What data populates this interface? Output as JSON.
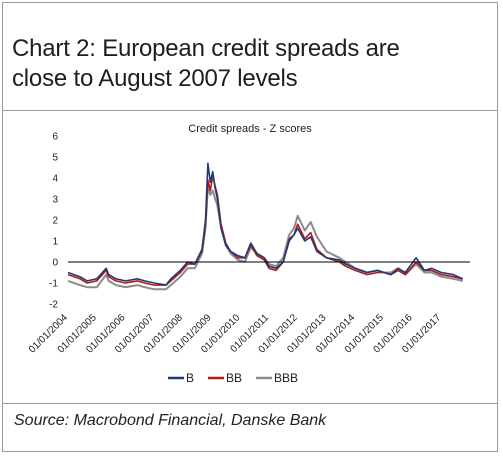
{
  "header": {
    "title_line1": "Chart 2: European credit spreads are",
    "title_line2": "close to August 2007 levels"
  },
  "footer": {
    "source": "Source: Macrobond Financial, Danske Bank"
  },
  "colors": {
    "B": "#1f3b73",
    "BB": "#b5161c",
    "BBB": "#8c8c8c",
    "zero_line": "#000000",
    "axis_text": "#222222"
  },
  "chart_data": {
    "type": "line",
    "title": "Credit spreads - Z scores",
    "xlabel": "",
    "ylabel": "",
    "ylim": [
      -2,
      6
    ],
    "yticks": [
      -2,
      -1,
      0,
      1,
      2,
      3,
      4,
      5,
      6
    ],
    "xlim": [
      "2004-01-01",
      "2018-01-01"
    ],
    "xticks": [
      "01/01/2004",
      "01/01/2005",
      "01/01/2006",
      "01/01/2007",
      "01/01/2008",
      "01/01/2009",
      "01/01/2010",
      "01/01/2011",
      "01/01/2012",
      "01/01/2013",
      "01/01/2014",
      "01/01/2015",
      "01/01/2016",
      "01/01/2017"
    ],
    "legend": "bottom-center",
    "grid": false,
    "series": [
      {
        "name": "B",
        "x": [
          "2004-01-01",
          "2004-06-01",
          "2004-09-01",
          "2005-01-01",
          "2005-05-01",
          "2005-06-01",
          "2005-09-01",
          "2006-01-01",
          "2006-06-01",
          "2006-09-01",
          "2007-01-01",
          "2007-06-01",
          "2007-08-01",
          "2007-12-01",
          "2008-03-01",
          "2008-06-01",
          "2008-09-01",
          "2008-10-15",
          "2008-11-15",
          "2008-12-15",
          "2009-01-15",
          "2009-02-15",
          "2009-03-15",
          "2009-05-01",
          "2009-07-01",
          "2009-09-01",
          "2009-12-01",
          "2010-03-01",
          "2010-05-15",
          "2010-08-01",
          "2010-11-01",
          "2011-01-01",
          "2011-04-01",
          "2011-07-01",
          "2011-09-15",
          "2011-11-15",
          "2012-01-01",
          "2012-04-01",
          "2012-06-15",
          "2012-09-01",
          "2013-01-01",
          "2013-06-15",
          "2013-09-01",
          "2014-01-01",
          "2014-06-01",
          "2014-10-15",
          "2015-01-01",
          "2015-04-01",
          "2015-07-01",
          "2015-10-01",
          "2016-02-15",
          "2016-06-01",
          "2016-09-01",
          "2017-01-01",
          "2017-06-01",
          "2017-10-01"
        ],
        "values": [
          -0.5,
          -0.7,
          -0.9,
          -0.8,
          -0.3,
          -0.6,
          -0.8,
          -0.9,
          -0.8,
          -0.9,
          -1.0,
          -1.1,
          -0.8,
          -0.4,
          0.0,
          -0.1,
          0.6,
          2.0,
          4.7,
          3.8,
          4.3,
          3.5,
          3.0,
          1.6,
          0.8,
          0.5,
          0.3,
          0.2,
          0.9,
          0.4,
          0.2,
          -0.2,
          -0.3,
          0.0,
          1.0,
          1.3,
          1.6,
          1.0,
          1.2,
          0.5,
          0.2,
          0.1,
          -0.1,
          -0.3,
          -0.5,
          -0.4,
          -0.5,
          -0.6,
          -0.3,
          -0.5,
          0.2,
          -0.4,
          -0.3,
          -0.5,
          -0.6,
          -0.8
        ]
      },
      {
        "name": "BB",
        "x": [
          "2004-01-01",
          "2004-06-01",
          "2004-09-01",
          "2005-01-01",
          "2005-05-01",
          "2005-06-01",
          "2005-09-01",
          "2006-01-01",
          "2006-06-01",
          "2006-09-01",
          "2007-01-01",
          "2007-06-01",
          "2007-08-01",
          "2007-12-01",
          "2008-03-01",
          "2008-06-01",
          "2008-09-01",
          "2008-10-15",
          "2008-11-15",
          "2008-12-15",
          "2009-01-15",
          "2009-02-15",
          "2009-03-15",
          "2009-05-01",
          "2009-07-01",
          "2009-09-01",
          "2009-12-01",
          "2010-03-01",
          "2010-05-15",
          "2010-08-01",
          "2010-11-01",
          "2011-01-01",
          "2011-04-01",
          "2011-07-01",
          "2011-09-15",
          "2011-11-15",
          "2012-01-01",
          "2012-04-01",
          "2012-06-15",
          "2012-09-01",
          "2013-01-01",
          "2013-06-15",
          "2013-09-01",
          "2014-01-01",
          "2014-06-01",
          "2014-10-15",
          "2015-01-01",
          "2015-04-01",
          "2015-07-01",
          "2015-10-01",
          "2016-02-15",
          "2016-06-01",
          "2016-09-01",
          "2017-01-01",
          "2017-06-01",
          "2017-10-01"
        ],
        "values": [
          -0.6,
          -0.8,
          -1.0,
          -0.9,
          -0.4,
          -0.7,
          -0.9,
          -1.0,
          -0.9,
          -1.0,
          -1.1,
          -1.1,
          -0.9,
          -0.5,
          -0.1,
          -0.1,
          0.5,
          1.8,
          3.9,
          3.4,
          4.1,
          3.6,
          3.2,
          1.8,
          0.9,
          0.5,
          0.2,
          0.2,
          0.8,
          0.3,
          0.1,
          -0.3,
          -0.4,
          0.0,
          1.1,
          1.3,
          1.8,
          1.1,
          1.4,
          0.6,
          0.2,
          0.0,
          -0.2,
          -0.4,
          -0.6,
          -0.5,
          -0.5,
          -0.6,
          -0.4,
          -0.6,
          0.0,
          -0.4,
          -0.4,
          -0.6,
          -0.7,
          -0.8
        ]
      },
      {
        "name": "BBB",
        "x": [
          "2004-01-01",
          "2004-06-01",
          "2004-09-01",
          "2005-01-01",
          "2005-05-01",
          "2005-06-01",
          "2005-09-01",
          "2006-01-01",
          "2006-06-01",
          "2006-09-01",
          "2007-01-01",
          "2007-06-01",
          "2007-08-01",
          "2007-12-01",
          "2008-03-01",
          "2008-06-01",
          "2008-09-01",
          "2008-10-15",
          "2008-11-15",
          "2008-12-15",
          "2009-01-15",
          "2009-02-15",
          "2009-03-15",
          "2009-05-01",
          "2009-07-01",
          "2009-09-01",
          "2009-12-01",
          "2010-03-01",
          "2010-05-15",
          "2010-08-01",
          "2010-11-01",
          "2011-01-01",
          "2011-04-01",
          "2011-07-01",
          "2011-09-15",
          "2011-11-15",
          "2012-01-01",
          "2012-04-01",
          "2012-06-15",
          "2012-09-01",
          "2013-01-01",
          "2013-06-15",
          "2013-09-01",
          "2014-01-01",
          "2014-06-01",
          "2014-10-15",
          "2015-01-01",
          "2015-04-01",
          "2015-07-01",
          "2015-10-01",
          "2016-02-15",
          "2016-06-01",
          "2016-09-01",
          "2017-01-01",
          "2017-06-01",
          "2017-10-01"
        ],
        "values": [
          -0.9,
          -1.1,
          -1.2,
          -1.2,
          -0.6,
          -0.9,
          -1.1,
          -1.2,
          -1.1,
          -1.2,
          -1.3,
          -1.3,
          -1.1,
          -0.7,
          -0.3,
          -0.3,
          0.4,
          1.6,
          3.6,
          3.2,
          3.4,
          3.0,
          2.7,
          1.7,
          0.8,
          0.4,
          0.1,
          0.0,
          0.7,
          0.4,
          0.2,
          -0.1,
          -0.2,
          0.2,
          1.3,
          1.6,
          2.2,
          1.5,
          1.9,
          1.2,
          0.5,
          0.2,
          0.0,
          -0.3,
          -0.5,
          -0.4,
          -0.5,
          -0.5,
          -0.3,
          -0.6,
          -0.1,
          -0.5,
          -0.5,
          -0.7,
          -0.8,
          -0.9
        ]
      }
    ]
  }
}
